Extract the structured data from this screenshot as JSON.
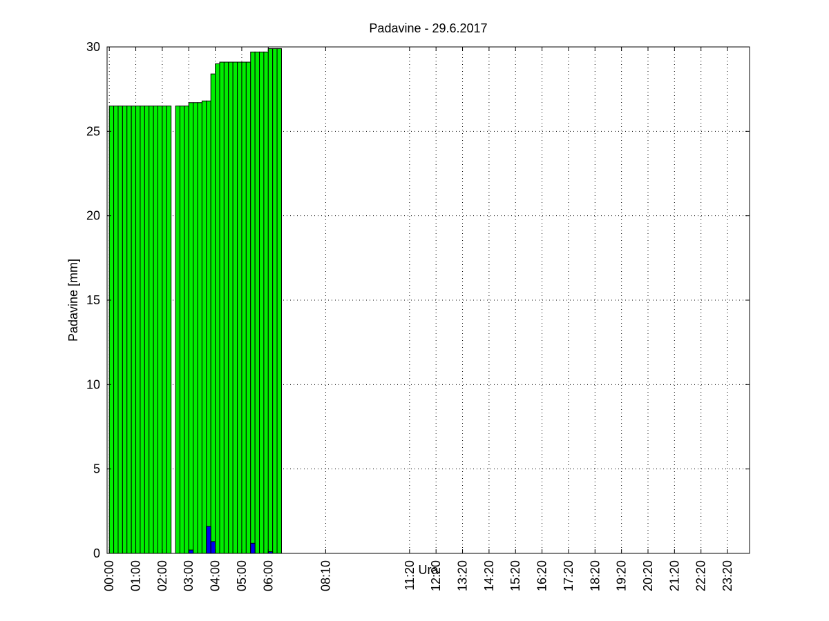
{
  "chart_data": {
    "type": "bar",
    "title": "Padavine - 29.6.2017",
    "xlabel": "Ura",
    "ylabel": "Padavine [mm]",
    "ylim": [
      0,
      30
    ],
    "yticks": [
      0,
      5,
      10,
      15,
      20,
      25,
      30
    ],
    "xlim_minutes": [
      -5,
      1450
    ],
    "xticks": [
      {
        "label": "00:00",
        "min": 0
      },
      {
        "label": "01:00",
        "min": 60
      },
      {
        "label": "02:00",
        "min": 120
      },
      {
        "label": "03:00",
        "min": 180
      },
      {
        "label": "04:00",
        "min": 240
      },
      {
        "label": "05:00",
        "min": 300
      },
      {
        "label": "06:00",
        "min": 360
      },
      {
        "label": "08:10",
        "min": 490
      },
      {
        "label": "11:20",
        "min": 680
      },
      {
        "label": "12:20",
        "min": 740
      },
      {
        "label": "13:20",
        "min": 800
      },
      {
        "label": "14:20",
        "min": 860
      },
      {
        "label": "15:20",
        "min": 920
      },
      {
        "label": "16:20",
        "min": 980
      },
      {
        "label": "17:20",
        "min": 1040
      },
      {
        "label": "18:20",
        "min": 1100
      },
      {
        "label": "19:20",
        "min": 1160
      },
      {
        "label": "20:20",
        "min": 1220
      },
      {
        "label": "21:20",
        "min": 1280
      },
      {
        "label": "22:20",
        "min": 1340
      },
      {
        "label": "23:20",
        "min": 1400
      }
    ],
    "grid": true,
    "bar_interval_minutes": 10,
    "series": [
      {
        "color": "#00ee00",
        "times": [
          "00:00",
          "00:10",
          "00:20",
          "00:30",
          "00:40",
          "00:50",
          "01:00",
          "01:10",
          "01:20",
          "01:30",
          "01:40",
          "01:50",
          "02:00",
          "02:10",
          "02:30",
          "02:40",
          "02:50",
          "03:00",
          "03:10",
          "03:20",
          "03:30",
          "03:40",
          "03:50",
          "04:00",
          "04:10",
          "04:20",
          "04:30",
          "04:40",
          "04:50",
          "05:00",
          "05:10",
          "05:20",
          "05:30",
          "05:40",
          "05:50",
          "06:00",
          "06:10",
          "06:20"
        ],
        "values": [
          26.5,
          26.5,
          26.5,
          26.5,
          26.5,
          26.5,
          26.5,
          26.5,
          26.5,
          26.5,
          26.5,
          26.5,
          26.5,
          26.5,
          26.5,
          26.5,
          26.5,
          26.7,
          26.7,
          26.7,
          26.8,
          26.8,
          28.4,
          29.0,
          29.1,
          29.1,
          29.1,
          29.1,
          29.1,
          29.1,
          29.1,
          29.7,
          29.7,
          29.7,
          29.7,
          29.9,
          29.9,
          29.9
        ]
      },
      {
        "color": "#0000ee",
        "times": [
          "03:00",
          "03:40",
          "03:50",
          "05:20",
          "06:00"
        ],
        "values": [
          0.2,
          1.6,
          0.7,
          0.6,
          0.1
        ]
      }
    ]
  }
}
